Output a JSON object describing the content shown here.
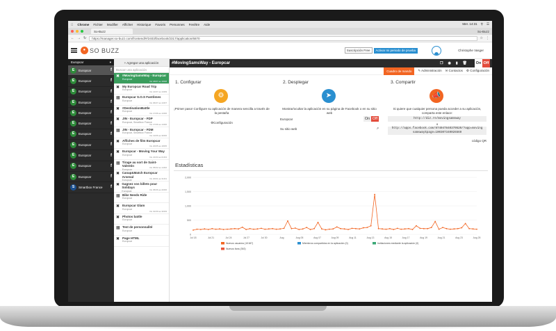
{
  "mac": {
    "menu": [
      "Chrome",
      "Fichier",
      "Modifier",
      "Afficher",
      "Historique",
      "Favoris",
      "Personnes",
      "Fenêtre",
      "Aide"
    ],
    "clock": "Mer. 14:31"
  },
  "browser": {
    "tab_title": "So-Buzz",
    "profile": "So-Buzz",
    "url": "https://manager.so-buzz.com/frontend/#/2403/facebook/2317/application/6870"
  },
  "header": {
    "logo": "SO BUZZ",
    "sub_free": "Suscripción Free",
    "sub_trial": "Activar mi periodo de prueba",
    "user": "Christophe Vasger"
  },
  "sidebar": {
    "account": "Europcar",
    "items": [
      {
        "name": "Europcar",
        "icon": "E",
        "active": true
      },
      {
        "name": "Europcar",
        "icon": "E"
      },
      {
        "name": "Europcar",
        "icon": "E"
      },
      {
        "name": "Europcar",
        "icon": "E"
      },
      {
        "name": "Europcar",
        "icon": "E"
      },
      {
        "name": "Europcar",
        "icon": "E"
      },
      {
        "name": "Europcar",
        "icon": "E"
      },
      {
        "name": "Europcar",
        "icon": "E"
      },
      {
        "name": "Europcar",
        "icon": "E"
      },
      {
        "name": "Europcar",
        "icon": "E"
      },
      {
        "name": "Europcar",
        "icon": "E"
      },
      {
        "name": "Smartbox France",
        "icon": "S",
        "blue": true
      }
    ]
  },
  "apps": {
    "add": "+ Agregar una aplicación",
    "search_placeholder": "Buscar una aplicación",
    "items": [
      {
        "title": "#MovingSamsWay - Europcar",
        "sub": "Europcar",
        "date": "Du 18/07 au 18/08",
        "active": true
      },
      {
        "title": "My Europcar Road Trip",
        "sub": "Europcar",
        "date": "Du 14/07 au 13/09"
      },
      {
        "title": "Europcar S.O.S Fantômes",
        "sub": "Europcar",
        "date": "Du 06/07 au 13/07"
      },
      {
        "title": "#DestinationBattle",
        "sub": "Europcar",
        "date": "Du 17/06 au 13/06"
      },
      {
        "title": "JIN - Europcar - FDP",
        "sub": "Europcar, Smartbox France",
        "date": "Du 17/06 au 13/06"
      },
      {
        "title": "JIN - Europcar - FDM",
        "sub": "Europcar, Smartbox France",
        "date": "Du 13/06 au 30/06"
      },
      {
        "title": "Affiches de film Europcar",
        "sub": "Europcar",
        "date": "Du 20/05 au 18/05"
      },
      {
        "title": "Europcar - Moving Your Way",
        "sub": "Europcar",
        "date": "Du 21/03 au 01/04"
      },
      {
        "title": "Tirage au sort de Saint-Valentin",
        "sub": "Europcar",
        "date": "Du 05/02 au 14/02"
      },
      {
        "title": "Canap&Match Europcar Arsenal",
        "sub": "Europcar",
        "date": "Du 20/01 au 31/01"
      },
      {
        "title": "Gagnez vos billets pour Solidays",
        "sub": "Europcar",
        "date": "Du 05/06 au 20/06"
      },
      {
        "title": "Bike Needs Ride",
        "sub": "Europcar",
        "date": ""
      },
      {
        "title": "Europcar Glam",
        "sub": "Europcar",
        "date": "Du 01/09 au 30/09"
      },
      {
        "title": "Photos battle",
        "sub": "Europcar",
        "date": ""
      },
      {
        "title": "Test de personnalité",
        "sub": "Europcar",
        "date": ""
      },
      {
        "title": "Page HTML",
        "sub": "Europcar",
        "date": ""
      }
    ]
  },
  "main": {
    "title": "#MovingSamsWay - Europcar",
    "on": "On",
    "off": "Off",
    "subtabs": {
      "dashboard": "Cuadro de mando",
      "admin": "Administración",
      "contacts": "Contactos",
      "config": "Configuración"
    },
    "step1": {
      "title": "1. Configurar",
      "text": "¡Primer paso! Configure su aplicación de manera sencilla a través de la pestaña",
      "link": "Configuración"
    },
    "step2": {
      "title": "2. Desplegar",
      "text": "Mostrar/ocultar la aplicación en su página de Facebook o en su sitio web",
      "fb": "Europcar",
      "web": "Su sitio web",
      "on": "On",
      "off": "Off"
    },
    "step3": {
      "title": "3. Compartir",
      "text": "Si quiere que cualquier persona pueda acceder a su aplicación, comparta este enlace:",
      "url1": "http://diz.re/movingsamsway",
      "or": "o",
      "url2": "http://apps.facebook.com/874047840370520/?app=moving samswaykpage=100307340026569",
      "qr": "código QR"
    },
    "stats_title": "Estadísticas"
  },
  "chart_data": {
    "type": "line",
    "ylim": [
      0,
      2000
    ],
    "yticks": [
      "2,000",
      "1,500",
      "1,000",
      "500",
      "0"
    ],
    "xticks": [
      "Jul 18",
      "Jul 21",
      "Jul 24",
      "Jul 27",
      "Jul 30",
      "Aug",
      "Aug 05",
      "Aug 07",
      "Aug 09",
      "Aug 11",
      "Aug 13",
      "Aug 15",
      "Aug 17",
      "Aug 19",
      "Aug 21",
      "Aug 23",
      "Aug 25"
    ],
    "series": [
      {
        "name": "Nuevos usuarios (10187)",
        "color": "#f26522",
        "values": [
          150,
          180,
          170,
          190,
          170,
          200,
          180,
          190,
          170,
          180,
          190,
          200,
          190,
          250,
          170,
          200,
          180,
          190,
          210,
          180,
          190,
          200,
          180,
          190,
          210,
          470,
          200,
          220,
          170,
          190,
          240,
          170,
          200,
          420,
          190,
          160,
          180,
          190,
          260,
          200,
          190,
          170,
          210,
          200,
          190,
          230,
          240,
          300,
          1400,
          200,
          190,
          180,
          200,
          170,
          210,
          180,
          190,
          200,
          170,
          300,
          210,
          200,
          200,
          240,
          450,
          180,
          240,
          200,
          180,
          190,
          200,
          230,
          380,
          200,
          190,
          180
        ]
      },
      {
        "name": "Miembros compartidos en la aplicación (0)",
        "color": "#2a8fd0",
        "values": []
      },
      {
        "name": "Invitaciones mediante la aplicación (0)",
        "color": "#3aa876",
        "values": []
      },
      {
        "name": "Nuevos fans (392)",
        "color": "#e8553a",
        "values": []
      }
    ]
  },
  "colors": {
    "accent": "#f26522",
    "green": "#3a9d5d",
    "dark": "#2b2b2b"
  }
}
